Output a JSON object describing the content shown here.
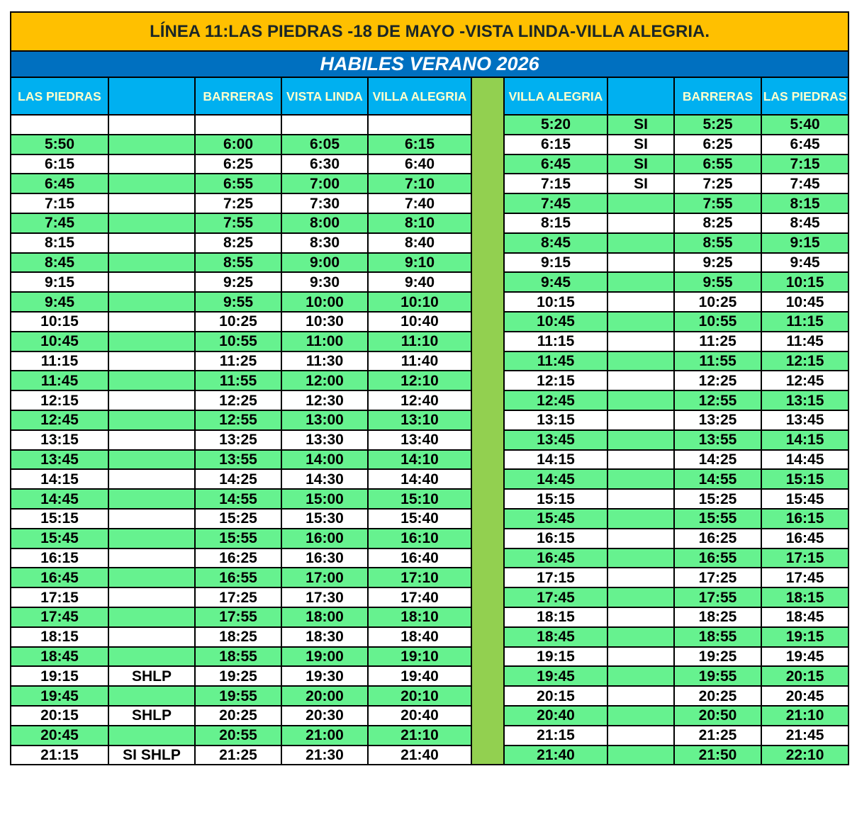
{
  "title": "LÍNEA 11:LAS PIEDRAS -18 DE MAYO -VISTA LINDA-VILLA ALEGRIA.",
  "subtitle": "HABILES VERANO 2026",
  "colors": {
    "title_bg": "#FFC000",
    "subtitle_bg": "#0070C0",
    "header_bg": "#00B0F0",
    "row_green": "#66F28F",
    "divider": "#92D050"
  },
  "left": {
    "headers": [
      "LAS PIEDRAS",
      "",
      "BARRERAS",
      "VISTA LINDA",
      "VILLA ALEGRIA"
    ],
    "rows": [
      [
        "",
        "",
        "",
        "",
        ""
      ],
      [
        "5:50",
        "",
        "6:00",
        "6:05",
        "6:15"
      ],
      [
        "6:15",
        "",
        "6:25",
        "6:30",
        "6:40"
      ],
      [
        "6:45",
        "",
        "6:55",
        "7:00",
        "7:10"
      ],
      [
        "7:15",
        "",
        "7:25",
        "7:30",
        "7:40"
      ],
      [
        "7:45",
        "",
        "7:55",
        "8:00",
        "8:10"
      ],
      [
        "8:15",
        "",
        "8:25",
        "8:30",
        "8:40"
      ],
      [
        "8:45",
        "",
        "8:55",
        "9:00",
        "9:10"
      ],
      [
        "9:15",
        "",
        "9:25",
        "9:30",
        "9:40"
      ],
      [
        "9:45",
        "",
        "9:55",
        "10:00",
        "10:10"
      ],
      [
        "10:15",
        "",
        "10:25",
        "10:30",
        "10:40"
      ],
      [
        "10:45",
        "",
        "10:55",
        "11:00",
        "11:10"
      ],
      [
        "11:15",
        "",
        "11:25",
        "11:30",
        "11:40"
      ],
      [
        "11:45",
        "",
        "11:55",
        "12:00",
        "12:10"
      ],
      [
        "12:15",
        "",
        "12:25",
        "12:30",
        "12:40"
      ],
      [
        "12:45",
        "",
        "12:55",
        "13:00",
        "13:10"
      ],
      [
        "13:15",
        "",
        "13:25",
        "13:30",
        "13:40"
      ],
      [
        "13:45",
        "",
        "13:55",
        "14:00",
        "14:10"
      ],
      [
        "14:15",
        "",
        "14:25",
        "14:30",
        "14:40"
      ],
      [
        "14:45",
        "",
        "14:55",
        "15:00",
        "15:10"
      ],
      [
        "15:15",
        "",
        "15:25",
        "15:30",
        "15:40"
      ],
      [
        "15:45",
        "",
        "15:55",
        "16:00",
        "16:10"
      ],
      [
        "16:15",
        "",
        "16:25",
        "16:30",
        "16:40"
      ],
      [
        "16:45",
        "",
        "16:55",
        "17:00",
        "17:10"
      ],
      [
        "17:15",
        "",
        "17:25",
        "17:30",
        "17:40"
      ],
      [
        "17:45",
        "",
        "17:55",
        "18:00",
        "18:10"
      ],
      [
        "18:15",
        "",
        "18:25",
        "18:30",
        "18:40"
      ],
      [
        "18:45",
        "",
        "18:55",
        "19:00",
        "19:10"
      ],
      [
        "19:15",
        "SHLP",
        "19:25",
        "19:30",
        "19:40"
      ],
      [
        "19:45",
        "",
        "19:55",
        "20:00",
        "20:10"
      ],
      [
        "20:15",
        "SHLP",
        "20:25",
        "20:30",
        "20:40"
      ],
      [
        "20:45",
        "",
        "20:55",
        "21:00",
        "21:10"
      ],
      [
        "21:15",
        "SI SHLP",
        "21:25",
        "21:30",
        "21:40"
      ]
    ]
  },
  "right": {
    "headers": [
      "VILLA ALEGRIA",
      "",
      "BARRERAS",
      "LAS PIEDRAS"
    ],
    "rows": [
      [
        "5:20",
        "SI",
        "5:25",
        "5:40"
      ],
      [
        "6:15",
        "SI",
        "6:25",
        "6:45"
      ],
      [
        "6:45",
        "SI",
        "6:55",
        "7:15"
      ],
      [
        "7:15",
        "SI",
        "7:25",
        "7:45"
      ],
      [
        "7:45",
        "",
        "7:55",
        "8:15"
      ],
      [
        "8:15",
        "",
        "8:25",
        "8:45"
      ],
      [
        "8:45",
        "",
        "8:55",
        "9:15"
      ],
      [
        "9:15",
        "",
        "9:25",
        "9:45"
      ],
      [
        "9:45",
        "",
        "9:55",
        "10:15"
      ],
      [
        "10:15",
        "",
        "10:25",
        "10:45"
      ],
      [
        "10:45",
        "",
        "10:55",
        "11:15"
      ],
      [
        "11:15",
        "",
        "11:25",
        "11:45"
      ],
      [
        "11:45",
        "",
        "11:55",
        "12:15"
      ],
      [
        "12:15",
        "",
        "12:25",
        "12:45"
      ],
      [
        "12:45",
        "",
        "12:55",
        "13:15"
      ],
      [
        "13:15",
        "",
        "13:25",
        "13:45"
      ],
      [
        "13:45",
        "",
        "13:55",
        "14:15"
      ],
      [
        "14:15",
        "",
        "14:25",
        "14:45"
      ],
      [
        "14:45",
        "",
        "14:55",
        "15:15"
      ],
      [
        "15:15",
        "",
        "15:25",
        "15:45"
      ],
      [
        "15:45",
        "",
        "15:55",
        "16:15"
      ],
      [
        "16:15",
        "",
        "16:25",
        "16:45"
      ],
      [
        "16:45",
        "",
        "16:55",
        "17:15"
      ],
      [
        "17:15",
        "",
        "17:25",
        "17:45"
      ],
      [
        "17:45",
        "",
        "17:55",
        "18:15"
      ],
      [
        "18:15",
        "",
        "18:25",
        "18:45"
      ],
      [
        "18:45",
        "",
        "18:55",
        "19:15"
      ],
      [
        "19:15",
        "",
        "19:25",
        "19:45"
      ],
      [
        "19:45",
        "",
        "19:55",
        "20:15"
      ],
      [
        "20:15",
        "",
        "20:25",
        "20:45"
      ],
      [
        "20:40",
        "",
        "20:50",
        "21:10"
      ],
      [
        "21:15",
        "",
        "21:25",
        "21:45"
      ],
      [
        "21:40",
        "",
        "21:50",
        "22:10"
      ]
    ]
  }
}
